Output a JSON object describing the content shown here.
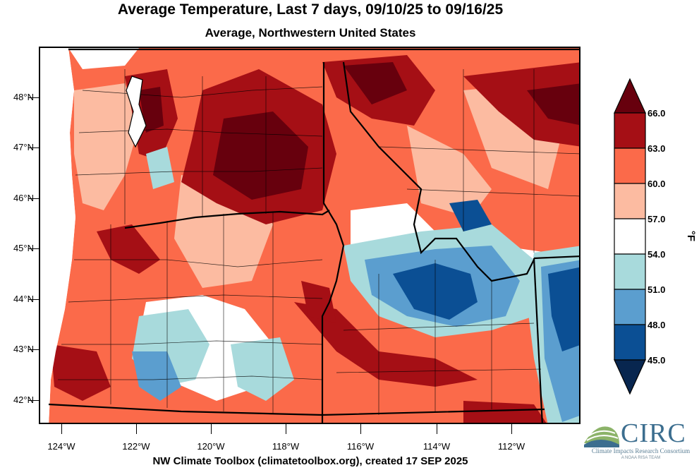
{
  "title": "Average Temperature, Last 7 days, 09/10/25 to 09/16/25",
  "subtitle": "Average, Northwestern United States",
  "footer": "NW Climate Toolbox (climatetoolbox.org), created 17 SEP 2025",
  "latitude_labels": [
    "48°N",
    "47°N",
    "46°N",
    "45°N",
    "44°N",
    "43°N",
    "42°N"
  ],
  "longitude_labels": [
    "124°W",
    "122°W",
    "120°W",
    "118°W",
    "116°W",
    "114°W",
    "112°W"
  ],
  "legend": {
    "unit": "°F",
    "levels": [
      "66.0",
      "63.0",
      "60.0",
      "57.0",
      "54.0",
      "51.0",
      "48.0",
      "45.0"
    ],
    "colors": [
      "#67000d",
      "#a50f15",
      "#fb6a4a",
      "#fcbba1",
      "#ffffff",
      "#a8dadc",
      "#5b9ecf",
      "#0b4f94",
      "#08264f"
    ]
  },
  "logo": {
    "name": "CIRC",
    "full_name": "Climate Impacts Research Consortium",
    "tagline": "A NOAA RISA TEAM"
  }
}
